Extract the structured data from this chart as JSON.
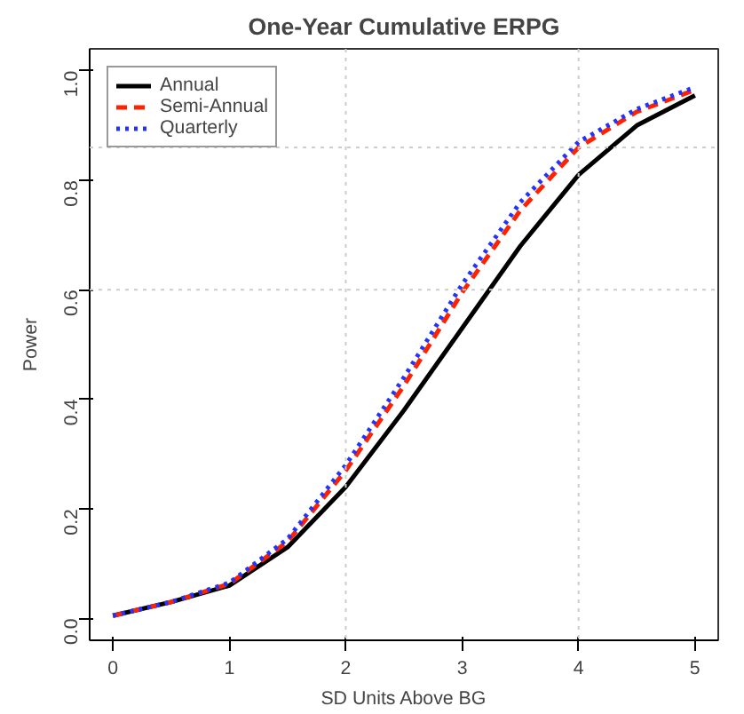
{
  "chart_data": {
    "type": "line",
    "title": "One-Year Cumulative ERPG",
    "xlabel": "SD Units Above BG",
    "ylabel": "Power",
    "x": [
      0,
      0.5,
      1,
      1.5,
      2,
      2.5,
      3,
      3.5,
      4,
      4.5,
      5
    ],
    "series": [
      {
        "name": "Annual",
        "color": "#000000",
        "line_style": "solid",
        "values": [
          0.005,
          0.03,
          0.06,
          0.13,
          0.24,
          0.38,
          0.53,
          0.68,
          0.81,
          0.9,
          0.955
        ]
      },
      {
        "name": "Semi-Annual",
        "color": "#ff2200",
        "line_style": "dashed",
        "values": [
          0.005,
          0.03,
          0.063,
          0.14,
          0.27,
          0.425,
          0.595,
          0.745,
          0.86,
          0.925,
          0.965
        ]
      },
      {
        "name": "Quarterly",
        "color": "#2233ff",
        "line_style": "dotted",
        "values": [
          0.005,
          0.03,
          0.065,
          0.145,
          0.28,
          0.44,
          0.61,
          0.76,
          0.87,
          0.93,
          0.97
        ]
      }
    ],
    "xlim": [
      -0.2,
      5.2
    ],
    "ylim": [
      -0.04,
      1.04
    ],
    "xticks": [
      0,
      1,
      2,
      3,
      4,
      5
    ],
    "yticks": [
      {
        "value": 0,
        "label": "0.0"
      },
      0.2,
      0.4,
      0.6,
      0.8,
      {
        "value": 1,
        "label": "1.0"
      }
    ],
    "ref_lines": [
      {
        "axis": "x",
        "value": 2,
        "label": null,
        "color": "#cccccc",
        "line_style": "dotted"
      },
      {
        "axis": "x",
        "value": 4,
        "label": null,
        "color": "#cccccc",
        "line_style": "dotted"
      },
      {
        "axis": "y",
        "value": 0.6,
        "label": null,
        "color": "#cccccc",
        "line_style": "dotted"
      },
      {
        "axis": "y",
        "value": 0.86,
        "label": null,
        "color": "#cccccc",
        "line_style": "dotted"
      }
    ],
    "legend": "top left",
    "grid": false,
    "marker": "none"
  }
}
